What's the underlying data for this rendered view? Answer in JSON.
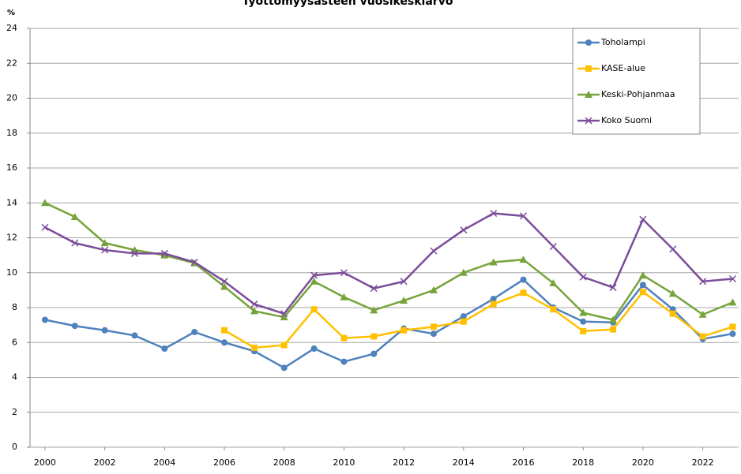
{
  "chart_data": {
    "type": "line",
    "title": "Työttömyysasteen vuosikeskiarvo",
    "y_label": "%",
    "x": [
      2000,
      2001,
      2002,
      2003,
      2004,
      2005,
      2006,
      2007,
      2008,
      2009,
      2010,
      2011,
      2012,
      2013,
      2014,
      2015,
      2016,
      2017,
      2018,
      2019,
      2020,
      2021,
      2022,
      2023
    ],
    "series": [
      {
        "name": "Toholampi",
        "color": "#4f81bd",
        "marker": "circle",
        "values": [
          7.3,
          6.95,
          6.7,
          6.4,
          5.65,
          6.6,
          6.0,
          5.5,
          4.55,
          5.65,
          4.9,
          5.35,
          6.8,
          6.5,
          7.5,
          8.5,
          9.6,
          8.0,
          7.2,
          7.15,
          9.3,
          7.9,
          6.2,
          6.5
        ]
      },
      {
        "name": "KASE-alue",
        "color": "#ffc000",
        "marker": "square",
        "values": [
          null,
          null,
          null,
          null,
          null,
          null,
          6.7,
          5.7,
          5.85,
          7.9,
          6.25,
          6.35,
          6.7,
          6.9,
          7.2,
          8.2,
          8.85,
          7.9,
          6.65,
          6.75,
          8.9,
          7.65,
          6.35,
          6.9
        ]
      },
      {
        "name": "Keski-Pohjanmaa",
        "color": "#77a33a",
        "marker": "triangle",
        "values": [
          14.0,
          13.2,
          11.7,
          11.3,
          11.0,
          10.55,
          9.2,
          7.8,
          7.45,
          9.5,
          8.6,
          7.85,
          8.4,
          9.0,
          10.0,
          10.6,
          10.75,
          9.4,
          7.7,
          7.3,
          9.85,
          8.8,
          7.6,
          8.3
        ]
      },
      {
        "name": "Koko Suomi",
        "color": "#7b4c9a",
        "marker": "cross",
        "values": [
          12.6,
          11.7,
          11.3,
          11.1,
          11.1,
          10.6,
          9.5,
          8.2,
          7.65,
          9.85,
          10.0,
          9.1,
          9.5,
          11.25,
          12.45,
          13.4,
          13.25,
          11.5,
          9.75,
          9.15,
          13.05,
          11.35,
          9.5,
          9.65
        ]
      }
    ],
    "xlim": [
      1999.5,
      2023.2
    ],
    "xticks": [
      2000,
      2002,
      2004,
      2006,
      2008,
      2010,
      2012,
      2014,
      2016,
      2018,
      2020,
      2022
    ],
    "ylim": [
      0,
      24
    ],
    "yticks": [
      0,
      2,
      4,
      6,
      8,
      10,
      12,
      14,
      16,
      18,
      20,
      22,
      24
    ],
    "grid": true,
    "legend": "upper right"
  }
}
